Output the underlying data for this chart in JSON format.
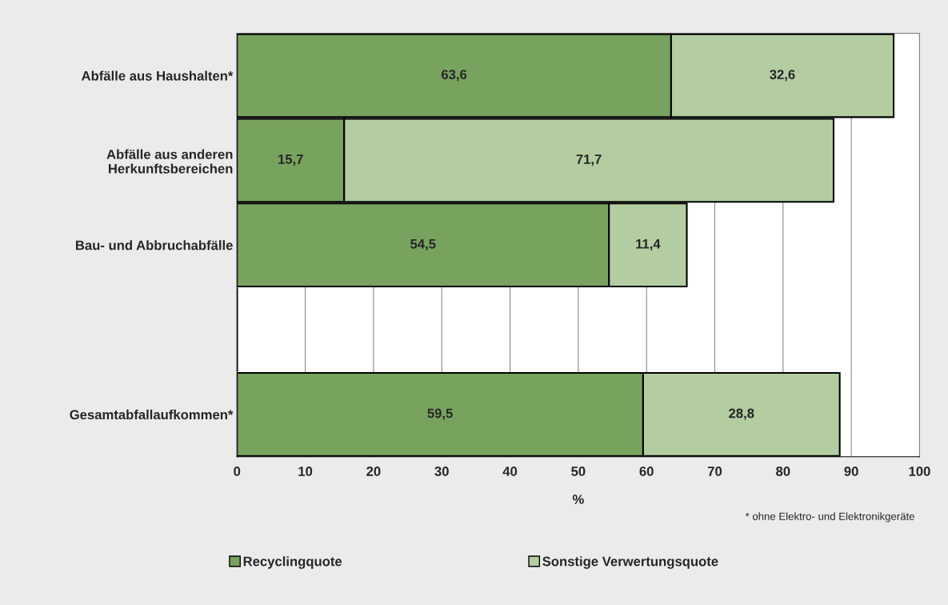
{
  "chart_data": {
    "type": "bar",
    "orientation": "horizontal",
    "stacked": true,
    "categories": [
      "Abfälle aus Haushalten*",
      "Abfälle aus anderen\nHerkunftsbereichen",
      "Bau- und Abbruchabfälle",
      null,
      "Gesamtabfallaufkommen*"
    ],
    "series": [
      {
        "name": "Recyclingquote",
        "color": "#78a35e",
        "values": [
          63.6,
          15.7,
          54.5,
          null,
          59.5
        ],
        "value_labels": [
          "63,6",
          "15,7",
          "54,5",
          null,
          "59,5"
        ]
      },
      {
        "name": "Sonstige Verwertungsquote",
        "color": "#b3cda0",
        "values": [
          32.6,
          71.7,
          11.4,
          null,
          28.8
        ],
        "value_labels": [
          "32,6",
          "71,7",
          "11,4",
          null,
          "28,8"
        ]
      }
    ],
    "xlim": [
      0,
      100
    ],
    "xticks": [
      0,
      10,
      20,
      30,
      40,
      50,
      60,
      70,
      80,
      90,
      100
    ],
    "xlabel": "%",
    "annotations": [
      "* ohne Elektro- und Elektronikgeräte"
    ],
    "grid": "x",
    "legend": "bottom"
  }
}
